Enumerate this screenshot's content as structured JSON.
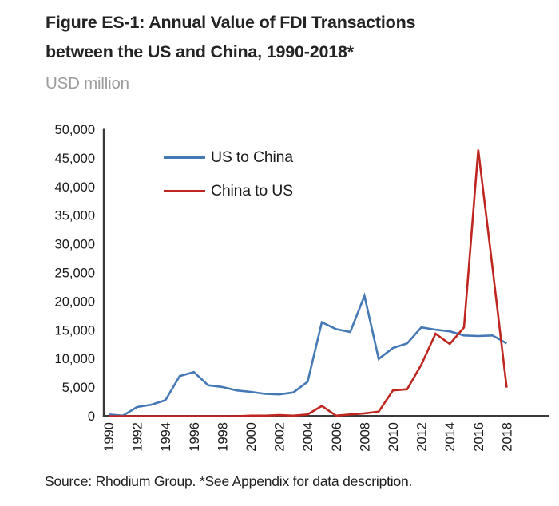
{
  "header": {
    "title_line1": "Figure ES-1: Annual Value of FDI Transactions",
    "title_line2": "between the US and China, 1990-2018*",
    "subtitle": "USD million"
  },
  "legend": {
    "items": [
      {
        "label": "US to China"
      },
      {
        "label": "China to US"
      }
    ]
  },
  "footer": {
    "source": "Source: Rhodium Group. *See Appendix for data description."
  },
  "colors": {
    "us_to_china": "#4479b6",
    "china_to_us": "#bf2620",
    "axis": "#3a3a3a",
    "tick_text": "#1a1a1a"
  },
  "chart_data": {
    "type": "line",
    "title": "Figure ES-1: Annual Value of FDI Transactions between the US and China, 1990-2018*",
    "unit_label": "USD million",
    "x": [
      1990,
      1991,
      1992,
      1993,
      1994,
      1995,
      1996,
      1997,
      1998,
      1999,
      2000,
      2001,
      2002,
      2003,
      2004,
      2005,
      2006,
      2007,
      2008,
      2009,
      2010,
      2011,
      2012,
      2013,
      2014,
      2015,
      2016,
      2017,
      2018
    ],
    "series": [
      {
        "name": "US to China",
        "color": "#4479b6",
        "values": [
          300,
          100,
          1600,
          2000,
          2800,
          7000,
          7700,
          5400,
          5100,
          4500,
          4250,
          3900,
          3800,
          4150,
          6000,
          16400,
          15200,
          14700,
          21000,
          10000,
          11900,
          12700,
          15500,
          15100,
          14800,
          14100,
          14000,
          14100,
          12700
        ]
      },
      {
        "name": "China to US",
        "color": "#bf2620",
        "values": [
          0,
          0,
          0,
          0,
          0,
          0,
          0,
          0,
          0,
          0,
          100,
          100,
          200,
          100,
          300,
          1800,
          100,
          300,
          500,
          800,
          4500,
          4700,
          9000,
          14400,
          12600,
          15500,
          46500,
          26000,
          5000
        ]
      }
    ],
    "ylim": [
      0,
      50000
    ],
    "ytick_step": 5000,
    "yticks": [
      "0",
      "5,000",
      "10,000",
      "15,000",
      "20,000",
      "25,000",
      "30,000",
      "35,000",
      "40,000",
      "45,000",
      "50,000"
    ],
    "xticks": [
      "1990",
      "1992",
      "1994",
      "1996",
      "1998",
      "2000",
      "2002",
      "2004",
      "2006",
      "2008",
      "2010",
      "2012",
      "2014",
      "2016",
      "2018"
    ],
    "grid": false,
    "legend_position": "top-left-inside"
  }
}
